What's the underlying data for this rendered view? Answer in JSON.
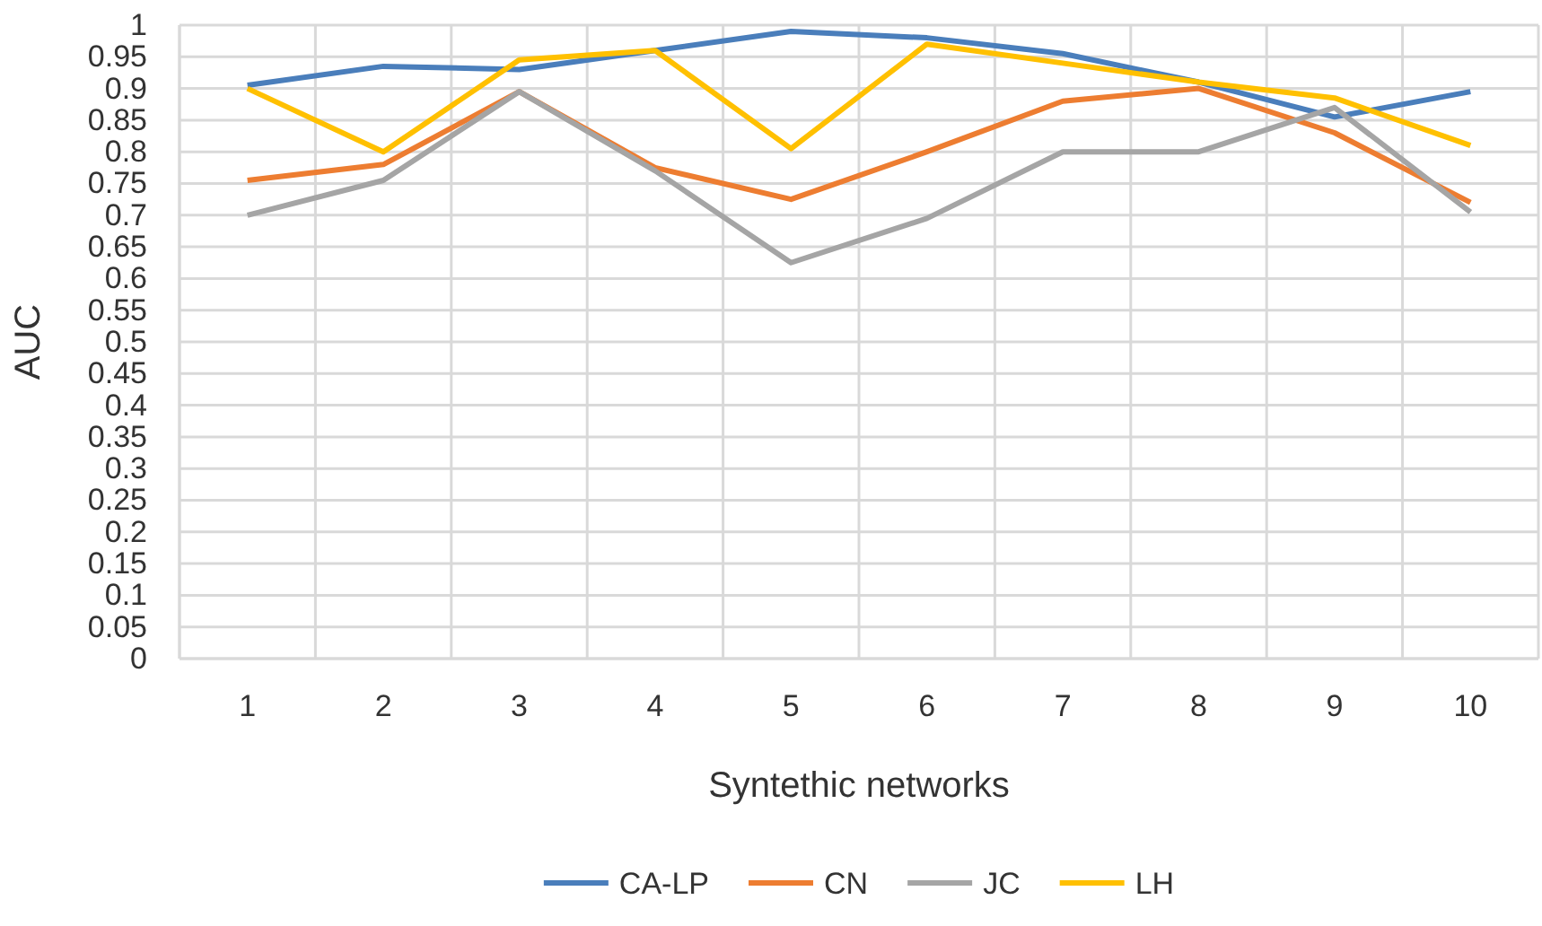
{
  "chart_data": {
    "type": "line",
    "xlabel": "Syntethic networks",
    "ylabel": "AUC",
    "categories": [
      "1",
      "2",
      "3",
      "4",
      "5",
      "6",
      "7",
      "8",
      "9",
      "10"
    ],
    "series": [
      {
        "name": "CA-LP",
        "color": "#4a7ebb",
        "values": [
          0.905,
          0.935,
          0.93,
          0.96,
          0.99,
          0.98,
          0.955,
          0.91,
          0.855,
          0.895
        ]
      },
      {
        "name": "CN",
        "color": "#ed7d31",
        "values": [
          0.755,
          0.78,
          0.895,
          0.775,
          0.725,
          0.8,
          0.88,
          0.9,
          0.83,
          0.72
        ]
      },
      {
        "name": "JC",
        "color": "#a5a5a5",
        "values": [
          0.7,
          0.755,
          0.895,
          0.77,
          0.625,
          0.695,
          0.8,
          0.8,
          0.87,
          0.705
        ]
      },
      {
        "name": "LH",
        "color": "#ffc000",
        "values": [
          0.9,
          0.8,
          0.945,
          0.96,
          0.805,
          0.97,
          0.94,
          0.91,
          0.885,
          0.81
        ]
      }
    ],
    "ylim": [
      0,
      1
    ],
    "yticks": [
      0,
      0.05,
      0.1,
      0.15,
      0.2,
      0.25,
      0.3,
      0.35,
      0.4,
      0.45,
      0.5,
      0.55,
      0.6,
      0.65,
      0.7,
      0.75,
      0.8,
      0.85,
      0.9,
      0.95,
      1
    ],
    "grid": true,
    "legend": "bottom",
    "marker": "none",
    "line_style": "solid"
  }
}
